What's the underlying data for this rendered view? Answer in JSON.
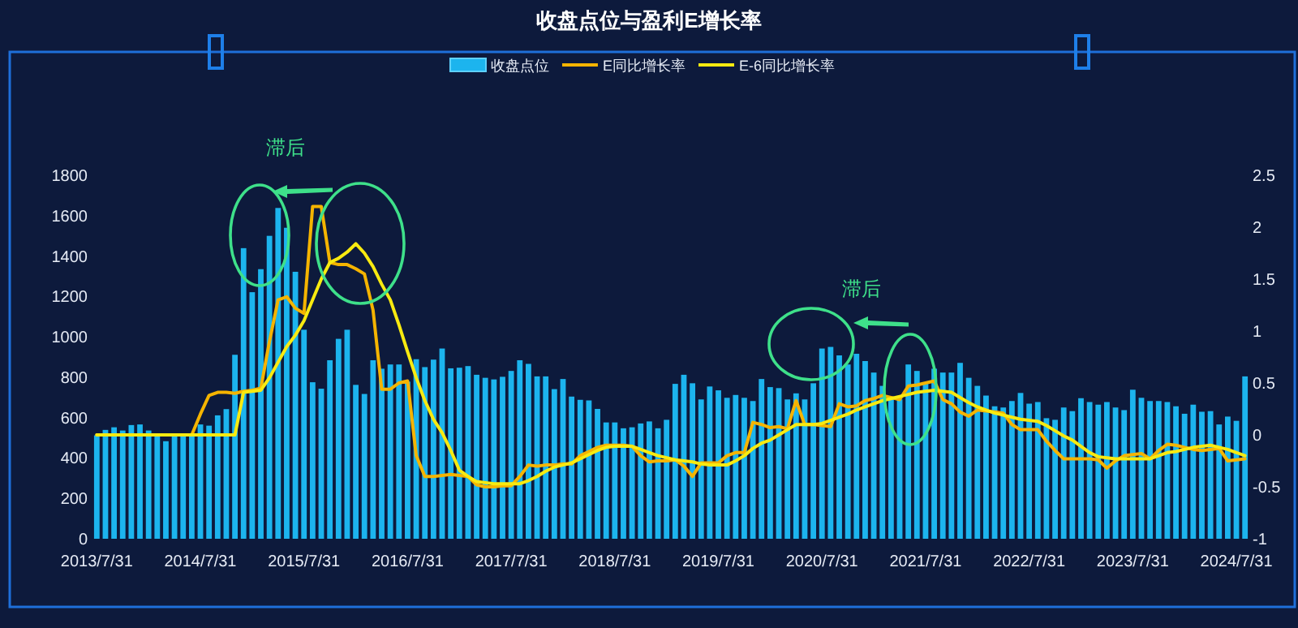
{
  "chart_data": {
    "type": "bar",
    "title": "收盘点位与盈利E增长率",
    "legend": "top",
    "categories": [
      "2013/7/31",
      null,
      null,
      null,
      null,
      null,
      null,
      null,
      null,
      null,
      null,
      null,
      "2014/7/31",
      null,
      null,
      null,
      null,
      null,
      null,
      null,
      null,
      null,
      null,
      null,
      "2015/7/31",
      null,
      null,
      null,
      null,
      null,
      null,
      null,
      null,
      null,
      null,
      null,
      "2016/7/31",
      null,
      null,
      null,
      null,
      null,
      null,
      null,
      null,
      null,
      null,
      null,
      "2017/7/31",
      null,
      null,
      null,
      null,
      null,
      null,
      null,
      null,
      null,
      null,
      null,
      "2018/7/31",
      null,
      null,
      null,
      null,
      null,
      null,
      null,
      null,
      null,
      null,
      null,
      "2019/7/31",
      null,
      null,
      null,
      null,
      null,
      null,
      null,
      null,
      null,
      null,
      null,
      "2020/7/31",
      null,
      null,
      null,
      null,
      null,
      null,
      null,
      null,
      null,
      null,
      null,
      "2021/7/31",
      null,
      null,
      null,
      null,
      null,
      null,
      null,
      null,
      null,
      null,
      null,
      "2022/7/31",
      null,
      null,
      null,
      null,
      null,
      null,
      null,
      null,
      null,
      null,
      null,
      "2023/7/31",
      null,
      null,
      null,
      null,
      null,
      null,
      null,
      null,
      null,
      null,
      null,
      "2024/7/31",
      null
    ],
    "series": [
      {
        "name": "收盘点位",
        "color": "#1cb4ee",
        "values": [
          512,
          539,
          552,
          536,
          563,
          566,
          536,
          512,
          483,
          512,
          512,
          512,
          566,
          560,
          611,
          642,
          911,
          1439,
          1221,
          1335,
          1500,
          1638,
          1540,
          1322,
          1035,
          775,
          743,
          884,
          990,
          1035,
          762,
          717,
          884,
          842,
          863,
          863,
          778,
          889,
          850,
          887,
          942,
          844,
          847,
          855,
          812,
          797,
          789,
          802,
          831,
          884,
          866,
          804,
          804,
          741,
          791,
          704,
          688,
          685,
          643,
          576,
          576,
          547,
          552,
          571,
          581,
          547,
          589,
          767,
          812,
          770,
          690,
          754,
          735,
          698,
          712,
          698,
          682,
          791,
          751,
          746,
          690,
          720,
          690,
          770,
          942,
          950,
          908,
          863,
          916,
          880,
          823,
          757,
          690,
          690,
          863,
          831,
          770,
          842,
          823,
          823,
          871,
          797,
          757,
          709,
          656,
          650,
          682,
          722,
          669,
          677,
          597,
          589,
          650,
          632,
          696,
          677,
          664,
          677,
          650,
          637,
          738,
          698,
          682,
          682,
          677,
          656,
          619,
          664,
          629,
          632,
          566,
          605,
          584,
          804
        ]
      },
      {
        "name": "E同比增长率",
        "type": "line",
        "axis": "y2",
        "color": "#f5b400",
        "values": [
          0,
          0,
          0,
          0,
          0,
          0,
          0,
          0,
          0,
          0,
          0,
          0,
          0.2,
          0.38,
          0.41,
          0.41,
          0.4,
          0.42,
          0.43,
          0.45,
          0.9,
          1.3,
          1.33,
          1.22,
          1.17,
          2.2,
          2.2,
          1.66,
          1.64,
          1.64,
          1.6,
          1.55,
          1.2,
          0.44,
          0.44,
          0.5,
          0.52,
          -0.2,
          -0.4,
          -0.4,
          -0.39,
          -0.38,
          -0.39,
          -0.4,
          -0.48,
          -0.5,
          -0.5,
          -0.49,
          -0.49,
          -0.4,
          -0.29,
          -0.3,
          -0.29,
          -0.29,
          -0.28,
          -0.28,
          -0.2,
          -0.16,
          -0.12,
          -0.1,
          -0.1,
          -0.1,
          -0.11,
          -0.2,
          -0.26,
          -0.25,
          -0.25,
          -0.24,
          -0.3,
          -0.4,
          -0.27,
          -0.27,
          -0.27,
          -0.2,
          -0.17,
          -0.17,
          0.12,
          0.1,
          0.07,
          0.08,
          0.06,
          0.33,
          0.1,
          0.1,
          0.09,
          0.08,
          0.3,
          0.27,
          0.28,
          0.33,
          0.35,
          0.38,
          0.36,
          0.34,
          0.47,
          0.48,
          0.5,
          0.52,
          0.34,
          0.3,
          0.22,
          0.18,
          0.24,
          0.23,
          0.22,
          0.21,
          0.1,
          0.05,
          0.05,
          0.05,
          -0.06,
          -0.15,
          -0.23,
          -0.23,
          -0.23,
          -0.23,
          -0.24,
          -0.32,
          -0.25,
          -0.2,
          -0.19,
          -0.18,
          -0.23,
          -0.15,
          -0.09,
          -0.1,
          -0.12,
          -0.14,
          -0.15,
          -0.14,
          -0.13,
          -0.25,
          -0.24,
          -0.23
        ]
      },
      {
        "name": "E-6同比增长率",
        "type": "line",
        "axis": "y2",
        "color": "#f8ea10",
        "values": [
          0,
          0,
          0,
          0,
          0,
          0,
          0,
          0,
          0,
          0,
          0,
          0,
          0,
          0,
          0,
          0,
          0,
          0.41,
          0.42,
          0.43,
          0.55,
          0.7,
          0.85,
          0.96,
          1.1,
          1.3,
          1.5,
          1.66,
          1.7,
          1.76,
          1.84,
          1.75,
          1.62,
          1.45,
          1.3,
          1.06,
          0.8,
          0.55,
          0.33,
          0.15,
          0.02,
          -0.15,
          -0.34,
          -0.4,
          -0.45,
          -0.46,
          -0.47,
          -0.47,
          -0.47,
          -0.47,
          -0.44,
          -0.4,
          -0.35,
          -0.31,
          -0.29,
          -0.27,
          -0.23,
          -0.19,
          -0.15,
          -0.12,
          -0.11,
          -0.11,
          -0.11,
          -0.14,
          -0.17,
          -0.2,
          -0.22,
          -0.24,
          -0.25,
          -0.26,
          -0.28,
          -0.29,
          -0.29,
          -0.29,
          -0.25,
          -0.2,
          -0.13,
          -0.08,
          -0.05,
          0,
          0.05,
          0.1,
          0.1,
          0.1,
          0.11,
          0.14,
          0.17,
          0.2,
          0.24,
          0.27,
          0.3,
          0.33,
          0.35,
          0.37,
          0.39,
          0.41,
          0.42,
          0.43,
          0.42,
          0.41,
          0.36,
          0.31,
          0.27,
          0.24,
          0.21,
          0.19,
          0.17,
          0.15,
          0.14,
          0.13,
          0.09,
          0.04,
          -0.01,
          -0.05,
          -0.11,
          -0.17,
          -0.21,
          -0.22,
          -0.23,
          -0.23,
          -0.23,
          -0.23,
          -0.23,
          -0.2,
          -0.17,
          -0.16,
          -0.14,
          -0.12,
          -0.11,
          -0.1,
          -0.12,
          -0.14,
          -0.17,
          -0.2
        ]
      }
    ],
    "ylim": [
      0,
      1800
    ],
    "yticks": [
      0,
      200,
      400,
      600,
      800,
      1000,
      1200,
      1400,
      1600,
      1800
    ],
    "y2lim": [
      -1,
      2.5
    ],
    "y2ticks": [
      -1,
      -0.5,
      0,
      0.5,
      1,
      1.5,
      2,
      2.5
    ],
    "annotations": [
      "滞后",
      "滞后"
    ]
  }
}
